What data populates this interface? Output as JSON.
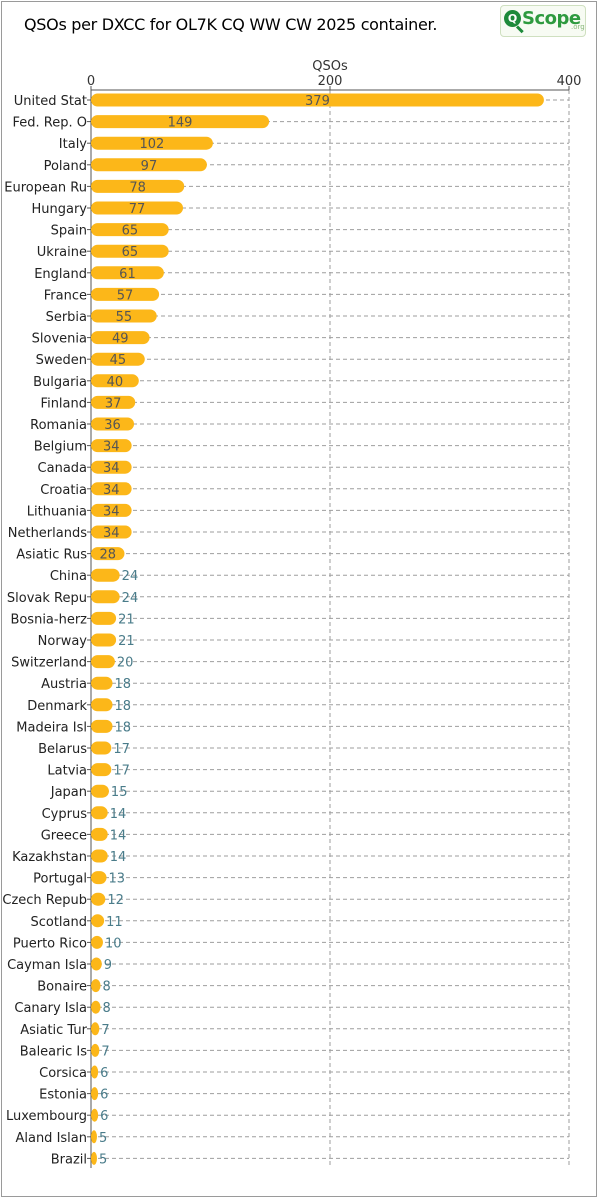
{
  "header": {
    "title": "QSOs per DXCC for OL7K CQ WW CW 2025 container.",
    "logo_text": "Scope",
    "logo_suffix": ".org",
    "logo_letter": "Q"
  },
  "colors": {
    "bar": "#fcb719",
    "grid": "#9e9e9e",
    "value_inside": "#555555",
    "value_outside": "#4a7c8a"
  },
  "chart_data": {
    "type": "bar",
    "orientation": "horizontal",
    "title": "QSOs per DXCC for OL7K CQ WW CW 2025 container.",
    "xlabel": "QSOs",
    "ylabel": "",
    "xlim": [
      0,
      400
    ],
    "x_ticks": [
      0,
      200,
      400
    ],
    "grid": true,
    "categories": [
      "United Stat",
      "Fed. Rep. O",
      "Italy",
      "Poland",
      "European Ru",
      "Hungary",
      "Spain",
      "Ukraine",
      "England",
      "France",
      "Serbia",
      "Slovenia",
      "Sweden",
      "Bulgaria",
      "Finland",
      "Romania",
      "Belgium",
      "Canada",
      "Croatia",
      "Lithuania",
      "Netherlands",
      "Asiatic Rus",
      "China",
      "Slovak Repu",
      "Bosnia-herz",
      "Norway",
      "Switzerland",
      "Austria",
      "Denmark",
      "Madeira Isl",
      "Belarus",
      "Latvia",
      "Japan",
      "Cyprus",
      "Greece",
      "Kazakhstan",
      "Portugal",
      "Czech Repub",
      "Scotland",
      "Puerto Rico",
      "Cayman Isla",
      "Bonaire",
      "Canary Isla",
      "Asiatic Tur",
      "Balearic Is",
      "Corsica",
      "Estonia",
      "Luxembourg",
      "Aland Islan",
      "Brazil"
    ],
    "values": [
      379,
      149,
      102,
      97,
      78,
      77,
      65,
      65,
      61,
      57,
      55,
      49,
      45,
      40,
      37,
      36,
      34,
      34,
      34,
      34,
      34,
      28,
      24,
      24,
      21,
      21,
      20,
      18,
      18,
      18,
      17,
      17,
      15,
      14,
      14,
      14,
      13,
      12,
      11,
      10,
      9,
      8,
      8,
      7,
      7,
      6,
      6,
      6,
      5,
      5
    ]
  }
}
